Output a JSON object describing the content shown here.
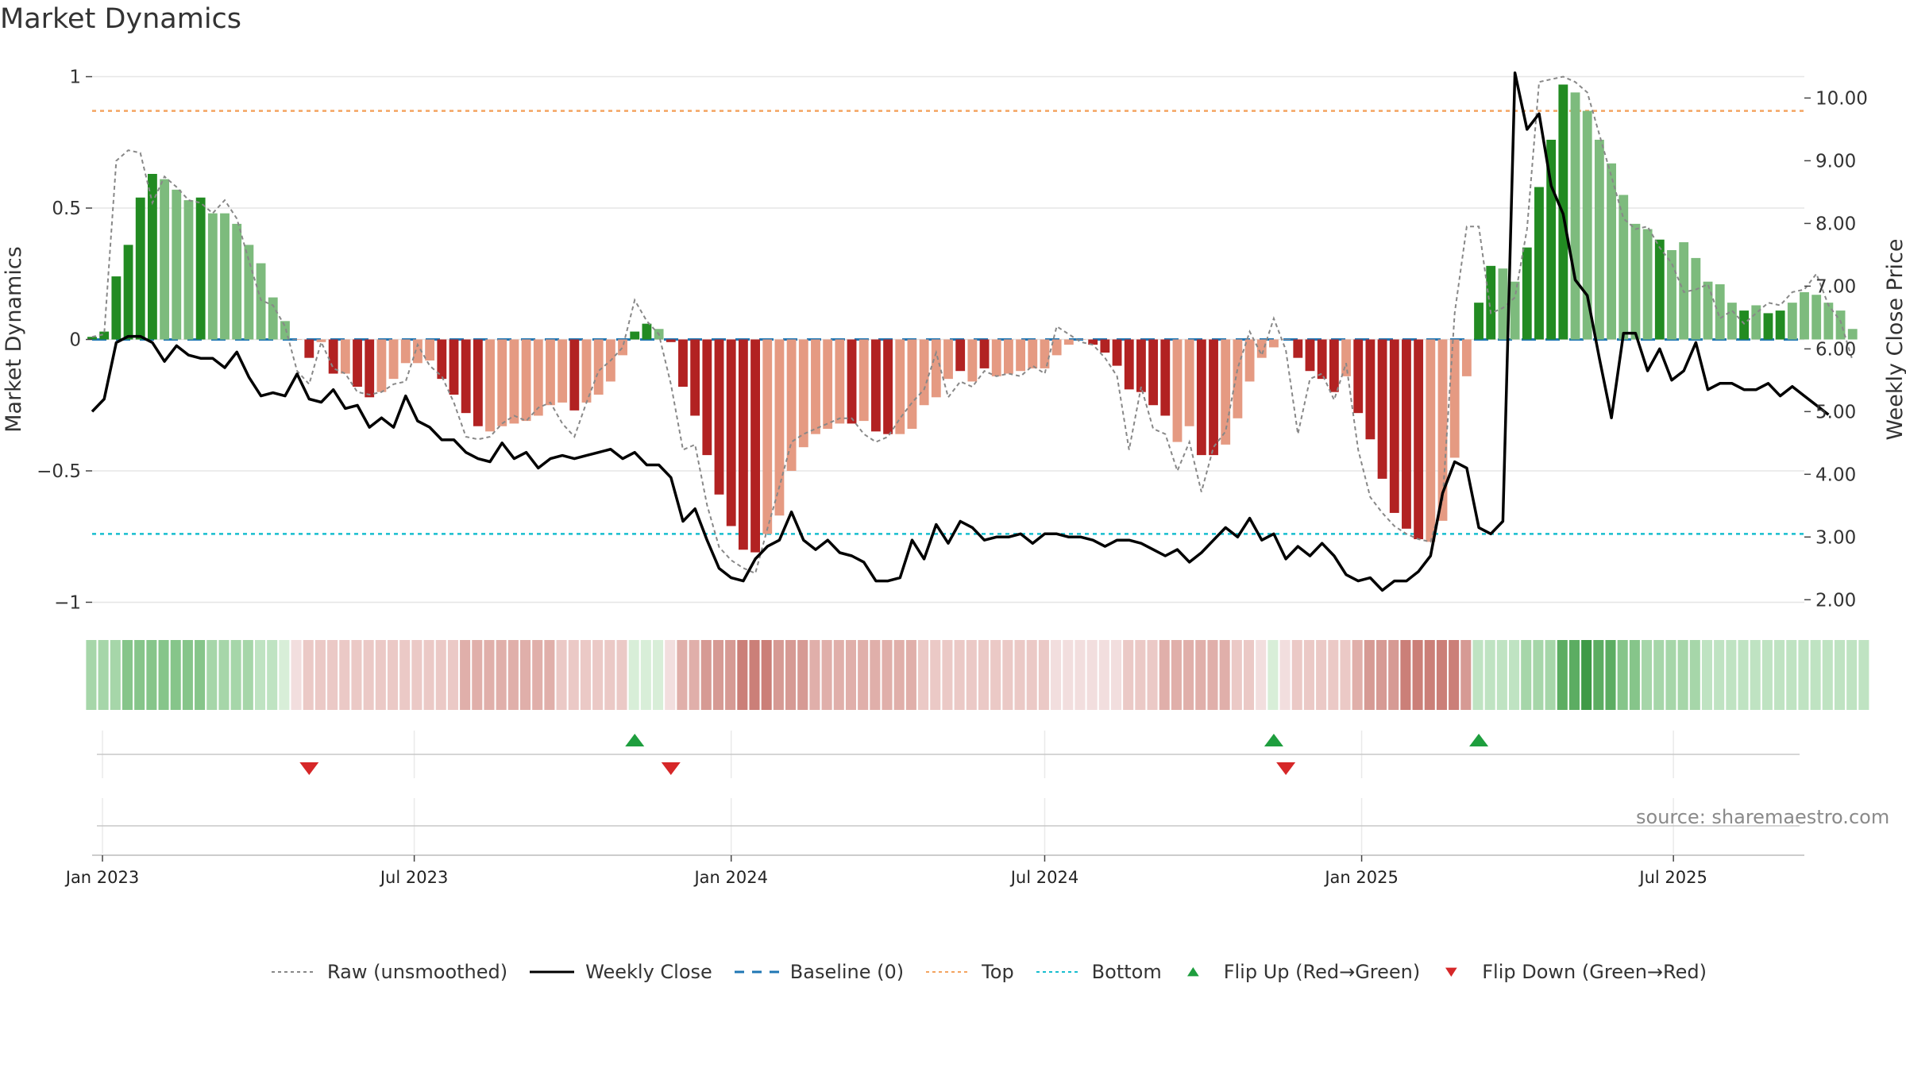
{
  "title": "Market Dynamics",
  "source": "source: sharemaestro.com",
  "colors": {
    "strong_green": "#228b22",
    "light_green": "#7dbb7d",
    "strong_red": "#b22222",
    "light_red": "#e59a82",
    "raw_line": "#888888",
    "close_line": "#000000",
    "baseline": "#1f77b4",
    "top": "#f4a460",
    "bottom": "#17becf",
    "flip_up": "#1e9e3e",
    "flip_down": "#d62728"
  },
  "legend": [
    {
      "key": "raw",
      "label": "Raw (unsmoothed)",
      "style": "dotted-line",
      "color": "#888888"
    },
    {
      "key": "close",
      "label": "Weekly Close",
      "style": "solid-line",
      "color": "#000000"
    },
    {
      "key": "baseline",
      "label": "Baseline (0)",
      "style": "dashed-line",
      "color": "#1f77b4"
    },
    {
      "key": "top",
      "label": "Top",
      "style": "dotted-line",
      "color": "#f4a460"
    },
    {
      "key": "bottom",
      "label": "Bottom",
      "style": "dotted-line",
      "color": "#17becf"
    },
    {
      "key": "flip_up",
      "label": "Flip Up (Red→Green)",
      "style": "triangle-up",
      "color": "#1e9e3e"
    },
    {
      "key": "flip_down",
      "label": "Flip Down (Green→Red)",
      "style": "triangle-down",
      "color": "#d62728"
    }
  ],
  "chart_data": {
    "type": "bar",
    "title": "Market Dynamics",
    "ylabel": "Market Dynamics",
    "y2label": "Weekly Close Price",
    "ylim": [
      -1.05,
      1.05
    ],
    "y2lim": [
      1.75,
      10.55
    ],
    "yticks": [
      1,
      0.5,
      0,
      -0.5,
      -1
    ],
    "ytick_labels": [
      "1",
      "0.5",
      "0",
      "−0.5",
      "−1"
    ],
    "y2ticks": [
      10,
      9,
      8,
      7,
      6,
      5,
      4,
      3,
      2
    ],
    "y2tick_labels": [
      "10.00",
      "9.00",
      "8.00",
      "7.00",
      "6.00",
      "5.00",
      "4.00",
      "3.00",
      "2.00"
    ],
    "x_start": "2022-12-26",
    "x_end": "2025-09-15",
    "xticks": [
      {
        "date": "2023-01-01",
        "label": "Jan 2023"
      },
      {
        "date": "2023-07-01",
        "label": "Jul 2023"
      },
      {
        "date": "2024-01-01",
        "label": "Jan 2024"
      },
      {
        "date": "2024-07-01",
        "label": "Jul 2024"
      },
      {
        "date": "2025-01-01",
        "label": "Jan 2025"
      },
      {
        "date": "2025-07-01",
        "label": "Jul 2025"
      }
    ],
    "grid": true,
    "legend_position": "bottom",
    "top_level": 0.87,
    "bottom_level": -0.74,
    "baseline": 0,
    "first_week": "2022-12-26",
    "bars": [
      0.01,
      0.03,
      0.24,
      0.36,
      0.54,
      0.63,
      0.61,
      0.57,
      0.53,
      0.54,
      0.48,
      0.48,
      0.44,
      0.36,
      0.29,
      0.16,
      0.07,
      0,
      -0.07,
      -0.01,
      -0.13,
      -0.13,
      -0.18,
      -0.22,
      -0.2,
      -0.15,
      -0.09,
      -0.09,
      -0.08,
      -0.15,
      -0.21,
      -0.28,
      -0.33,
      -0.35,
      -0.33,
      -0.32,
      -0.31,
      -0.29,
      -0.25,
      -0.24,
      -0.27,
      -0.24,
      -0.21,
      -0.16,
      -0.06,
      0.03,
      0.06,
      0.04,
      -0.01,
      -0.18,
      -0.29,
      -0.44,
      -0.59,
      -0.71,
      -0.8,
      -0.81,
      -0.74,
      -0.67,
      -0.5,
      -0.41,
      -0.36,
      -0.34,
      -0.32,
      -0.32,
      -0.31,
      -0.35,
      -0.36,
      -0.36,
      -0.34,
      -0.25,
      -0.22,
      -0.15,
      -0.12,
      -0.16,
      -0.11,
      -0.14,
      -0.13,
      -0.12,
      -0.11,
      -0.11,
      -0.06,
      -0.02,
      0,
      -0.02,
      -0.05,
      -0.1,
      -0.19,
      -0.2,
      -0.25,
      -0.29,
      -0.39,
      -0.33,
      -0.44,
      -0.44,
      -0.4,
      -0.3,
      -0.16,
      -0.07,
      -0.03,
      0,
      -0.07,
      -0.12,
      -0.15,
      -0.2,
      -0.14,
      -0.28,
      -0.38,
      -0.53,
      -0.66,
      -0.72,
      -0.76,
      -0.77,
      -0.69,
      -0.45,
      -0.14,
      0.14,
      0.28,
      0.27,
      0.22,
      0.35,
      0.58,
      0.76,
      0.97,
      0.94,
      0.87,
      0.76,
      0.67,
      0.55,
      0.44,
      0.42,
      0.38,
      0.34,
      0.37,
      0.31,
      0.22,
      0.21,
      0.14,
      0.11,
      0.13,
      0.1,
      0.11,
      0.14,
      0.18,
      0.17,
      0.14,
      0.11,
      0.04
    ],
    "bar_colors": [
      "SG",
      "SG",
      "SG",
      "SG",
      "SG",
      "SG",
      "LG",
      "LG",
      "LG",
      "SG",
      "LG",
      "LG",
      "LG",
      "LG",
      "LG",
      "LG",
      "LG",
      "LR",
      "SR",
      "LR",
      "SR",
      "LR",
      "SR",
      "SR",
      "LR",
      "LR",
      "LR",
      "LR",
      "LR",
      "SR",
      "SR",
      "SR",
      "SR",
      "LR",
      "LR",
      "LR",
      "LR",
      "LR",
      "LR",
      "LR",
      "SR",
      "LR",
      "LR",
      "LR",
      "LR",
      "SG",
      "SG",
      "LG",
      "SR",
      "SR",
      "SR",
      "SR",
      "SR",
      "SR",
      "SR",
      "SR",
      "LR",
      "LR",
      "LR",
      "LR",
      "LR",
      "LR",
      "LR",
      "SR",
      "LR",
      "SR",
      "SR",
      "LR",
      "LR",
      "LR",
      "LR",
      "LR",
      "SR",
      "LR",
      "SR",
      "LR",
      "LR",
      "LR",
      "LR",
      "LR",
      "LR",
      "LR",
      "LR",
      "SR",
      "SR",
      "SR",
      "SR",
      "SR",
      "SR",
      "SR",
      "LR",
      "LR",
      "SR",
      "SR",
      "LR",
      "LR",
      "LR",
      "LR",
      "LR",
      "LR",
      "SR",
      "SR",
      "SR",
      "SR",
      "LR",
      "SR",
      "SR",
      "SR",
      "SR",
      "SR",
      "SR",
      "LR",
      "LR",
      "LR",
      "LR",
      "SG",
      "SG",
      "LG",
      "LG",
      "SG",
      "SG",
      "SG",
      "SG",
      "LG",
      "LG",
      "LG",
      "LG",
      "LG",
      "LG",
      "LG",
      "SG",
      "LG",
      "LG",
      "LG",
      "LG",
      "LG",
      "LG",
      "SG",
      "LG",
      "SG",
      "SG",
      "LG",
      "LG",
      "LG",
      "LG",
      "LG",
      "LG"
    ],
    "raw": [
      0.01,
      0.02,
      0.68,
      0.72,
      0.71,
      0.52,
      0.62,
      0.58,
      0.53,
      0.52,
      0.48,
      0.53,
      0.46,
      0.3,
      0.15,
      0.13,
      0.05,
      -0.12,
      -0.17,
      -0.01,
      -0.11,
      -0.13,
      -0.2,
      -0.21,
      -0.2,
      -0.17,
      -0.16,
      -0.02,
      -0.1,
      -0.14,
      -0.24,
      -0.37,
      -0.38,
      -0.37,
      -0.32,
      -0.29,
      -0.31,
      -0.26,
      -0.24,
      -0.32,
      -0.37,
      -0.24,
      -0.12,
      -0.08,
      -0.03,
      0.15,
      0.07,
      0.02,
      -0.17,
      -0.42,
      -0.4,
      -0.63,
      -0.79,
      -0.84,
      -0.87,
      -0.89,
      -0.72,
      -0.56,
      -0.39,
      -0.36,
      -0.34,
      -0.32,
      -0.3,
      -0.3,
      -0.36,
      -0.39,
      -0.37,
      -0.3,
      -0.24,
      -0.19,
      -0.05,
      -0.22,
      -0.16,
      -0.18,
      -0.12,
      -0.14,
      -0.13,
      -0.14,
      -0.1,
      -0.13,
      0.05,
      0.02,
      -0.01,
      -0.02,
      -0.07,
      -0.14,
      -0.42,
      -0.18,
      -0.34,
      -0.36,
      -0.5,
      -0.39,
      -0.58,
      -0.41,
      -0.35,
      -0.11,
      0.03,
      -0.06,
      0.08,
      -0.04,
      -0.36,
      -0.15,
      -0.13,
      -0.23,
      -0.09,
      -0.42,
      -0.6,
      -0.66,
      -0.71,
      -0.74,
      -0.76,
      -0.77,
      -0.61,
      0.1,
      0.43,
      0.43,
      0.1,
      0.12,
      0.16,
      0.42,
      0.98,
      0.99,
      1.0,
      0.98,
      0.94,
      0.78,
      0.62,
      0.46,
      0.42,
      0.43,
      0.35,
      0.29,
      0.18,
      0.19,
      0.21,
      0.08,
      0.11,
      0.06,
      0.1,
      0.14,
      0.13,
      0.18,
      0.19,
      0.25,
      0.13,
      0.07,
      -0.08
    ],
    "close": [
      5.0,
      5.2,
      6.1,
      6.2,
      6.2,
      6.1,
      5.8,
      6.05,
      5.9,
      5.85,
      5.85,
      5.7,
      5.95,
      5.55,
      5.25,
      5.3,
      5.25,
      5.6,
      5.2,
      5.15,
      5.35,
      5.05,
      5.1,
      4.75,
      4.9,
      4.75,
      5.25,
      4.85,
      4.75,
      4.55,
      4.55,
      4.35,
      4.25,
      4.2,
      4.5,
      4.25,
      4.35,
      4.1,
      4.25,
      4.3,
      4.25,
      4.3,
      4.35,
      4.4,
      4.25,
      4.35,
      4.15,
      4.15,
      3.95,
      3.25,
      3.45,
      2.95,
      2.5,
      2.35,
      2.3,
      2.65,
      2.85,
      2.95,
      3.4,
      2.95,
      2.8,
      2.95,
      2.75,
      2.7,
      2.6,
      2.3,
      2.3,
      2.35,
      2.95,
      2.65,
      3.2,
      2.9,
      3.25,
      3.15,
      2.95,
      3.0,
      3.0,
      3.05,
      2.9,
      3.05,
      3.05,
      3.0,
      3.0,
      2.95,
      2.85,
      2.95,
      2.95,
      2.9,
      2.8,
      2.7,
      2.8,
      2.6,
      2.75,
      2.95,
      3.15,
      3.0,
      3.3,
      2.95,
      3.05,
      2.65,
      2.85,
      2.7,
      2.9,
      2.7,
      2.4,
      2.3,
      2.35,
      2.15,
      2.3,
      2.3,
      2.45,
      2.7,
      3.7,
      4.2,
      4.1,
      3.15,
      3.05,
      3.25,
      10.4,
      9.5,
      9.75,
      8.6,
      8.15,
      7.1,
      6.85,
      5.85,
      4.9,
      6.25,
      6.25,
      5.65,
      6.0,
      5.5,
      5.65,
      6.1,
      5.35,
      5.45,
      5.45,
      5.35,
      5.35,
      5.45,
      5.25,
      5.4,
      5.25,
      5.1,
      4.95
    ]
  },
  "heat_strip": {
    "values": [
      "G3",
      "G3",
      "G3",
      "G4",
      "G4",
      "G4",
      "G4",
      "G4",
      "G4",
      "G4",
      "G3",
      "G3",
      "G3",
      "G3",
      "G2",
      "G2",
      "G1",
      "R1",
      "R2",
      "R2",
      "R2",
      "R2",
      "R2",
      "R2",
      "R2",
      "R2",
      "R2",
      "R2",
      "R2",
      "R2",
      "R2",
      "R3",
      "R3",
      "R3",
      "R3",
      "R3",
      "R3",
      "R3",
      "R3",
      "R2",
      "R2",
      "R2",
      "R2",
      "R2",
      "R2",
      "G1",
      "G1",
      "G1",
      "R1",
      "R3",
      "R3",
      "R4",
      "R4",
      "R4",
      "R5",
      "R5",
      "R5",
      "R4",
      "R4",
      "R4",
      "R3",
      "R3",
      "R3",
      "R3",
      "R3",
      "R3",
      "R3",
      "R3",
      "R3",
      "R2",
      "R2",
      "R2",
      "R2",
      "R2",
      "R2",
      "R2",
      "R2",
      "R2",
      "R2",
      "R2",
      "R1",
      "R1",
      "R1",
      "R1",
      "R1",
      "R1",
      "R2",
      "R2",
      "R2",
      "R3",
      "R3",
      "R3",
      "R3",
      "R3",
      "R3",
      "R2",
      "R2",
      "R1",
      "G1",
      "R1",
      "R2",
      "R2",
      "R2",
      "R2",
      "R2",
      "R3",
      "R4",
      "R4",
      "R4",
      "R5",
      "R5",
      "R5",
      "R5",
      "R5",
      "R4",
      "G2",
      "G2",
      "G2",
      "G2",
      "G3",
      "G3",
      "G3",
      "G5",
      "G5",
      "G6",
      "G5",
      "G5",
      "G4",
      "G4",
      "G3",
      "G3",
      "G3",
      "G3",
      "G3",
      "G2",
      "G2",
      "G2",
      "G2",
      "G2",
      "G2",
      "G2",
      "G2",
      "G2",
      "G2",
      "G2",
      "G2",
      "G2",
      "G2"
    ],
    "palette": {
      "G1": "#d8eed8",
      "G2": "#bfe3c2",
      "G3": "#a6d6a9",
      "G4": "#86c58a",
      "G5": "#5cad62",
      "G6": "#3f9a47",
      "R1": "#f2dede",
      "R2": "#ebc9c6",
      "R3": "#e0afaa",
      "R4": "#d69a94",
      "R5": "#cb7f78"
    }
  },
  "signals": {
    "flip_up_weeks": [
      45,
      98,
      115
    ],
    "flip_down_weeks": [
      18,
      48,
      99
    ]
  }
}
